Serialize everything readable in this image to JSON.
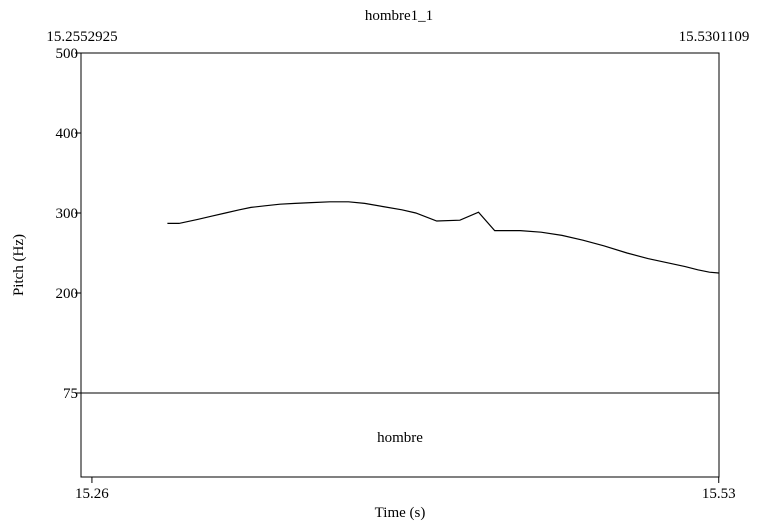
{
  "chart_data": {
    "type": "line",
    "title": "hombre1_1",
    "xlabel": "Time (s)",
    "ylabel": "Pitch (Hz)",
    "window_start_label": "15.2552925",
    "window_end_label": "15.5301109",
    "xlim": [
      15.2552925,
      15.5301109
    ],
    "ylim": [
      75,
      500
    ],
    "x_ticks": [
      {
        "value": 15.26,
        "label": "15.26"
      },
      {
        "value": 15.53,
        "label": "15.53"
      }
    ],
    "y_ticks": [
      {
        "value": 500,
        "label": "500"
      },
      {
        "value": 400,
        "label": "400"
      },
      {
        "value": 300,
        "label": "300"
      },
      {
        "value": 200,
        "label": "200"
      },
      {
        "value": 75,
        "label": "75"
      }
    ],
    "series": [
      {
        "x": [
          15.2925,
          15.2975,
          15.3055,
          15.3115,
          15.3175,
          15.3235,
          15.3285,
          15.3345,
          15.341,
          15.3475,
          15.3545,
          15.3625,
          15.3705,
          15.3775,
          15.3855,
          15.3935,
          15.3995,
          15.4085,
          15.4185,
          15.4265,
          15.4335,
          15.4445,
          15.4535,
          15.4625,
          15.4715,
          15.4805,
          15.4905,
          15.4995,
          15.5075,
          15.5155,
          15.521,
          15.526,
          15.53
        ],
        "y": [
          287,
          287,
          292,
          296,
          300,
          304,
          307,
          309,
          311,
          312,
          313,
          314,
          314,
          312,
          308,
          304,
          300,
          290,
          291,
          301,
          278,
          278,
          276,
          272,
          266,
          259,
          250,
          243,
          238,
          233,
          229,
          226,
          225
        ]
      }
    ],
    "tier": {
      "label": "hombre"
    },
    "grid": false
  }
}
